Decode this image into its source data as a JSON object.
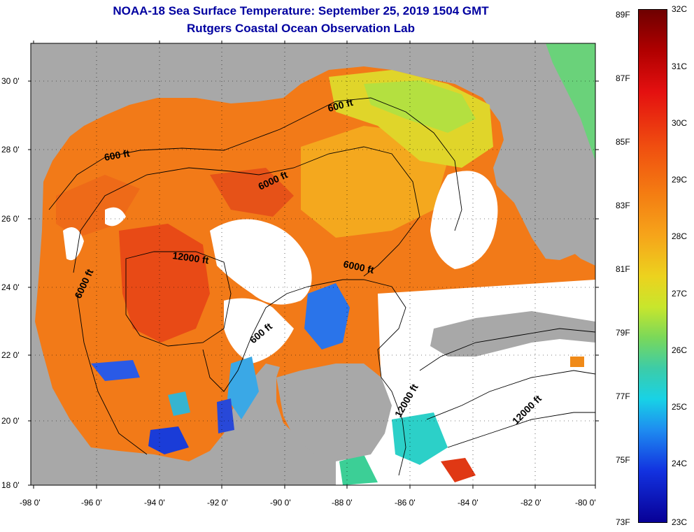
{
  "header": {
    "title": "NOAA-18 Sea Surface Temperature:  September 25, 2019 1504 GMT",
    "subtitle": "Rutgers Coastal Ocean Observation Lab"
  },
  "map": {
    "lon_labels": [
      "-98 0'",
      "-96 0'",
      "-94 0'",
      "-92 0'",
      "-90 0'",
      "-88 0'",
      "-86 0'",
      "-84 0'",
      "-82 0'",
      "-80 0'"
    ],
    "lat_labels": [
      "30 0'",
      "28 0'",
      "26 0'",
      "24 0'",
      "22 0'",
      "20 0'",
      "18 0'"
    ],
    "isobath_labels": [
      "600 ft",
      "600 ft",
      "6000 ft",
      "12000 ft",
      "6000 ft",
      "6000 ft",
      "600 ft",
      "12000 ft",
      "12000 ft"
    ],
    "colors": {
      "land": "#a8a8a8",
      "cloud": "#ffffff",
      "frame": "#000000"
    }
  },
  "colorbar": {
    "fahrenheit": [
      "89F",
      "87F",
      "85F",
      "83F",
      "81F",
      "79F",
      "77F",
      "75F",
      "73F"
    ],
    "celsius": [
      "32C",
      "31C",
      "30C",
      "29C",
      "28C",
      "27C",
      "26C",
      "25C",
      "24C",
      "23C"
    ],
    "range_c": [
      23,
      32
    ]
  }
}
